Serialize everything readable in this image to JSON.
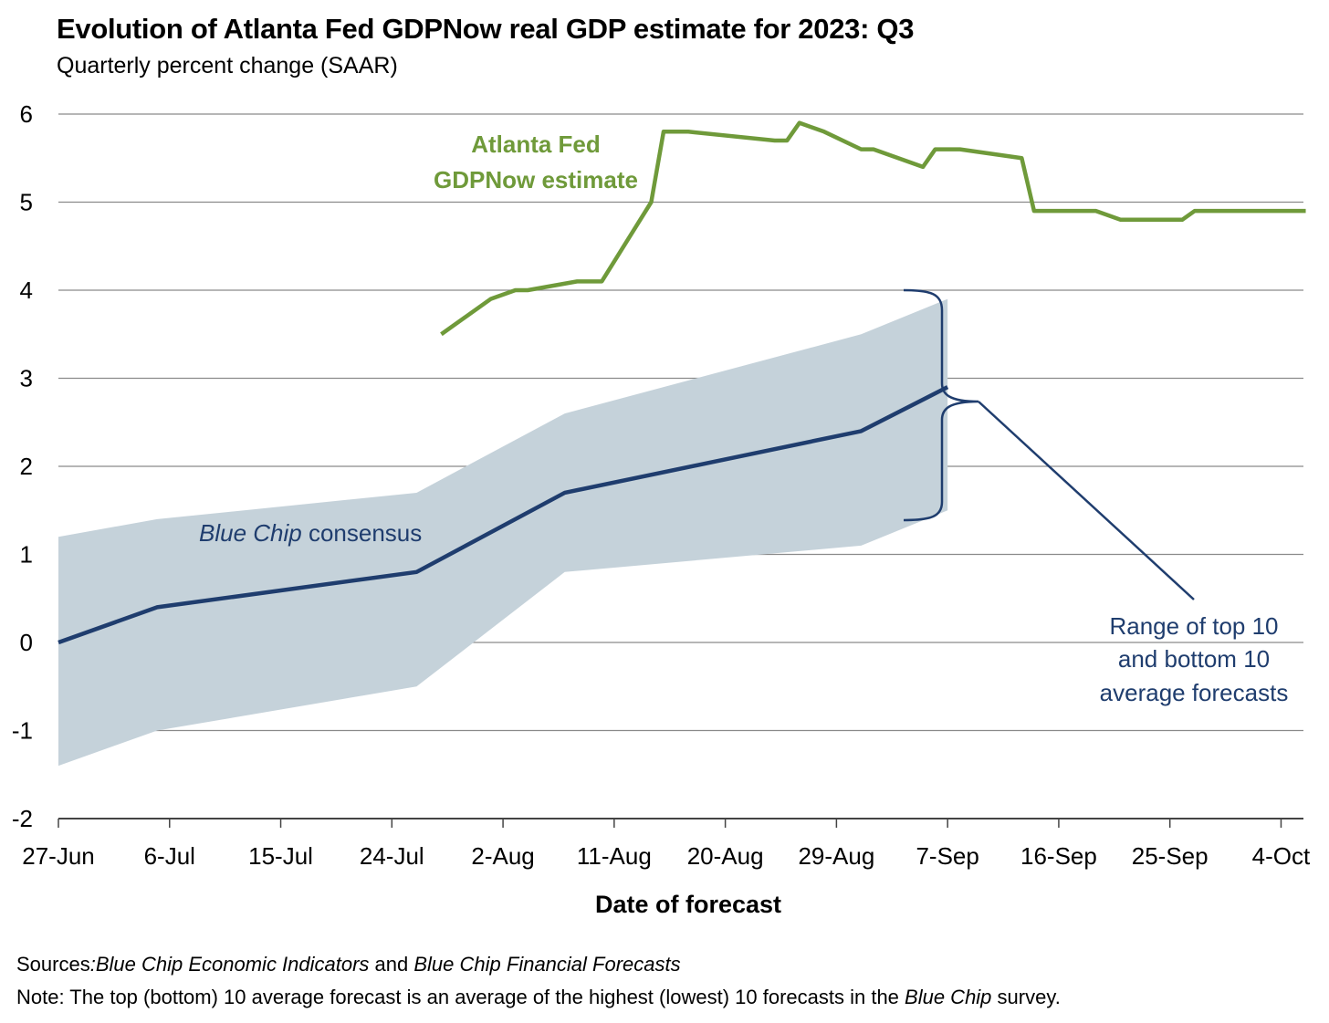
{
  "chart_data": {
    "type": "line",
    "title": "Evolution of Atlanta Fed GDPNow real GDP estimate for 2023: Q3",
    "subtitle": "Quarterly percent change (SAAR)",
    "xlabel": "Date of forecast",
    "ylabel": "",
    "ylim": [
      -2,
      6
    ],
    "y_ticks": [
      "6",
      "5",
      "4",
      "3",
      "2",
      "1",
      "0",
      "-1",
      "-2"
    ],
    "x_ticks": [
      "27-Jun",
      "6-Jul",
      "15-Jul",
      "24-Jul",
      "2-Aug",
      "11-Aug",
      "20-Aug",
      "29-Aug",
      "7-Sep",
      "16-Sep",
      "25-Sep",
      "4-Oct"
    ],
    "grid": true,
    "series": [
      {
        "name": "Atlanta Fed GDPNow estimate",
        "color": "#6f9a3a",
        "points": [
          [
            "2023-07-28",
            3.5
          ],
          [
            "2023-08-01",
            3.9
          ],
          [
            "2023-08-03",
            4.0
          ],
          [
            "2023-08-04",
            4.0
          ],
          [
            "2023-08-08",
            4.1
          ],
          [
            "2023-08-10",
            4.1
          ],
          [
            "2023-08-14",
            5.0
          ],
          [
            "2023-08-15",
            5.8
          ],
          [
            "2023-08-17",
            5.8
          ],
          [
            "2023-08-24",
            5.7
          ],
          [
            "2023-08-25",
            5.7
          ],
          [
            "2023-08-26",
            5.9
          ],
          [
            "2023-08-28",
            5.8
          ],
          [
            "2023-08-31",
            5.6
          ],
          [
            "2023-09-01",
            5.6
          ],
          [
            "2023-09-05",
            5.4
          ],
          [
            "2023-09-06",
            5.6
          ],
          [
            "2023-09-08",
            5.6
          ],
          [
            "2023-09-13",
            5.5
          ],
          [
            "2023-09-14",
            4.9
          ],
          [
            "2023-09-19",
            4.9
          ],
          [
            "2023-09-21",
            4.8
          ],
          [
            "2023-09-26",
            4.8
          ],
          [
            "2023-09-27",
            4.9
          ],
          [
            "2023-10-06",
            4.9
          ]
        ]
      },
      {
        "name": "Blue Chip consensus",
        "color": "#1f3d6e",
        "points": [
          [
            "2023-06-27",
            0.0
          ],
          [
            "2023-07-05",
            0.4
          ],
          [
            "2023-07-26",
            0.8
          ],
          [
            "2023-08-07",
            1.7
          ],
          [
            "2023-08-31",
            2.4
          ],
          [
            "2023-09-07",
            2.9
          ]
        ]
      },
      {
        "name": "Range of top 10 and bottom 10 average forecasts",
        "type": "area",
        "color": "#c5d2da",
        "points": [
          [
            "2023-06-27",
            -1.4,
            1.2
          ],
          [
            "2023-07-05",
            -1.0,
            1.4
          ],
          [
            "2023-07-26",
            -0.5,
            1.7
          ],
          [
            "2023-08-07",
            0.8,
            2.6
          ],
          [
            "2023-08-31",
            1.1,
            3.5
          ],
          [
            "2023-09-07",
            1.5,
            3.9
          ]
        ]
      }
    ],
    "annotations": {
      "gdpnow_line1": "Atlanta Fed",
      "gdpnow_line2": "GDPNow estimate",
      "bluechip_italic": "Blue Chip",
      "bluechip_rest": " consensus",
      "range_line1": "Range of top 10",
      "range_line2": "and bottom 10",
      "range_line3": "average forecasts"
    }
  },
  "footer": {
    "sources_label": "Sources",
    "sources_colon": ":",
    "sources_text1": "Blue Chip Economic Indicators",
    "sources_and": " and ",
    "sources_text2": "Blue Chip Financial Forecasts",
    "note_label": "Note",
    "note_text1": ": The top (bottom) 10 average forecast is an average of the highest (lowest) 10 forecasts in the ",
    "note_italic": "Blue Chip",
    "note_text2": " survey."
  }
}
